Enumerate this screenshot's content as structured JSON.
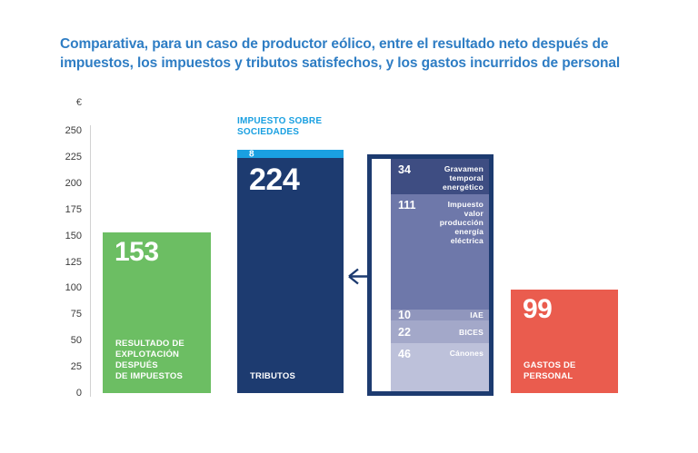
{
  "title": {
    "line1": "Comparativa, para un caso de productor eólico, entre el resultado neto después de",
    "line2": "impuestos, los impuestos y tributos satisfechos, y los gastos incurridos de personal",
    "color": "#2e7dc4"
  },
  "axis": {
    "currency_label": "€",
    "tick_values": [
      250,
      225,
      200,
      175,
      150,
      125,
      100,
      75,
      50,
      25,
      0
    ]
  },
  "bars": {
    "resultado": {
      "value": "153",
      "label_lines": [
        "RESULTADO DE",
        "EXPLOTACIÓN",
        "DESPUÉS",
        "DE IMPUESTOS"
      ],
      "color": "#6cbe63"
    },
    "tributos": {
      "value": "224",
      "label": "TRIBUTOS",
      "color": "#1d3b70",
      "cap": {
        "value": "8",
        "label_lines": [
          "IMPUESTO SOBRE",
          "SOCIEDADES"
        ],
        "color": "#1aa0e1"
      }
    },
    "gastos": {
      "value": "99",
      "label_lines": [
        "GASTOS DE",
        "PERSONAL"
      ],
      "color": "#ea5c4e"
    }
  },
  "chart_data": {
    "type": "bar",
    "title": "Comparativa, para un caso de productor eólico, entre el resultado neto después de impuestos, los impuestos y tributos satisfechos, y los gastos incurridos de personal",
    "ylabel": "€",
    "ylim": [
      0,
      250
    ],
    "ytick_step": 25,
    "grid": false,
    "legend": false,
    "bars": [
      {
        "id": "resultado",
        "name": "Resultado de explotación después de impuestos",
        "value": 153,
        "color": "#6cbe63"
      },
      {
        "id": "tributos",
        "name": "Tributos",
        "value": 224,
        "color": "#1d3b70",
        "stacked_cap": {
          "name": "Impuesto sobre sociedades",
          "value": 8,
          "color": "#1aa0e1"
        }
      },
      {
        "id": "gastos",
        "name": "Gastos de personal",
        "value": 99,
        "color": "#ea5c4e"
      }
    ],
    "breakdown_of_tributos": {
      "segments": [
        {
          "name": "Gravamen temporal energético",
          "value": 34,
          "color": "#3e4d82",
          "label_lines": [
            "Gravamen",
            "temporal",
            "energético"
          ]
        },
        {
          "name": "Impuesto valor producción energía eléctrica",
          "value": 111,
          "color": "#6e78aa",
          "label_lines": [
            "Impuesto",
            "valor",
            "producción",
            "energía",
            "eléctrica"
          ]
        },
        {
          "name": "IAE",
          "value": 10,
          "color": "#9096bd",
          "label_lines": [
            "IAE"
          ]
        },
        {
          "name": "BICES",
          "value": 22,
          "color": "#a3a8c9",
          "label_lines": [
            "BICES"
          ]
        },
        {
          "name": "Cánones",
          "value": 46,
          "color": "#bdc1da",
          "label_lines": [
            "Cánones"
          ]
        }
      ]
    }
  }
}
